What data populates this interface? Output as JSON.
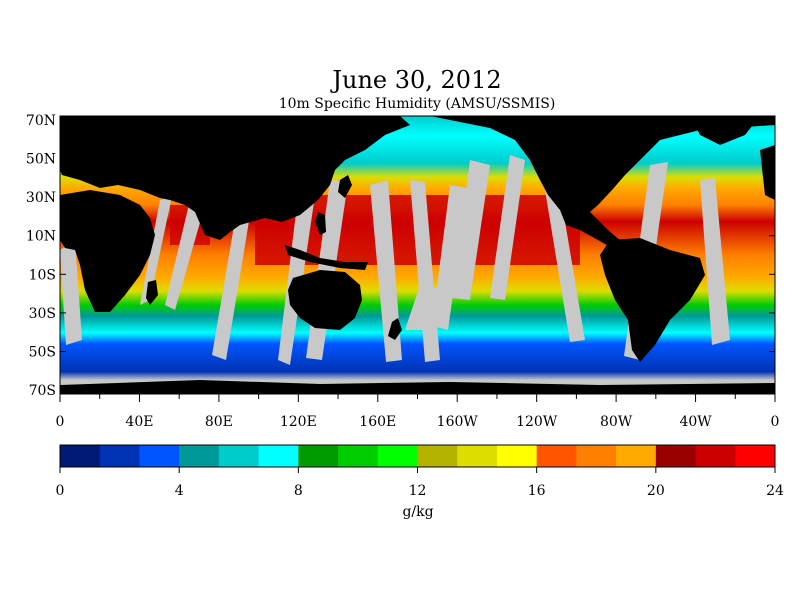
{
  "title": "June 30, 2012",
  "subtitle": "10m Specific Humidity (AMSU/SSMIS)",
  "lat_labels": [
    "70N",
    "50N",
    "30N",
    "10N",
    "10S",
    "30S",
    "50S",
    "70S"
  ],
  "lon_labels": [
    "0",
    "40E",
    "80E",
    "120E",
    "160E",
    "160W",
    "120W",
    "80W",
    "40W",
    "0"
  ],
  "colorbar": {
    "colors": [
      "#001a73",
      "#0033b3",
      "#0055ff",
      "#00999a",
      "#00cccc",
      "#00ffff",
      "#009900",
      "#00cc00",
      "#00ff00",
      "#b3b300",
      "#dddd00",
      "#ffff00",
      "#ff5500",
      "#ff8000",
      "#ffaa00",
      "#990000",
      "#cc0000",
      "#ff0000"
    ],
    "tick_labels": [
      "0",
      "4",
      "8",
      "12",
      "16",
      "20",
      "24"
    ],
    "range": [
      0,
      24
    ],
    "units": "g/kg"
  },
  "map_colors": {
    "land": "#000000",
    "no_data": "#c8c8c8",
    "ice": "#c8c8c8"
  }
}
